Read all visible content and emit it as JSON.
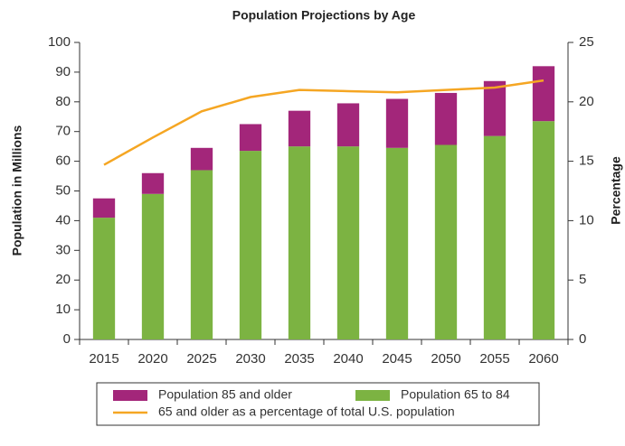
{
  "chart_data": {
    "type": "bar",
    "title": "Population Projections by Age",
    "ylabel": "Population in Millions",
    "y2label": "Percentage",
    "categories": [
      "2015",
      "2020",
      "2025",
      "2030",
      "2035",
      "2040",
      "2045",
      "2050",
      "2055",
      "2060"
    ],
    "stacked": true,
    "series": [
      {
        "name": "Population 65 to 84",
        "color": "#7cb342",
        "values": [
          41,
          49,
          57,
          63.5,
          65,
          65,
          64.5,
          65.5,
          68.5,
          73.5
        ]
      },
      {
        "name": "Population 85 and older",
        "color": "#a3267a",
        "values": [
          6.5,
          7,
          7.5,
          9,
          12,
          14.5,
          16.5,
          17.5,
          18.5,
          18.5
        ]
      },
      {
        "name": "65 and older as a percentage of total U.S. population",
        "type": "line",
        "axis": "y2",
        "color": "#f5a623",
        "values": [
          14.7,
          17,
          19.2,
          20.4,
          21,
          20.9,
          20.8,
          21,
          21.2,
          21.8
        ]
      }
    ],
    "ylim": [
      0,
      100
    ],
    "yticks": [
      0,
      10,
      20,
      30,
      40,
      50,
      60,
      70,
      80,
      90,
      100
    ],
    "y2lim": [
      0,
      25
    ],
    "y2ticks": [
      0,
      5,
      10,
      15,
      20,
      25
    ],
    "legend": "bottom"
  }
}
